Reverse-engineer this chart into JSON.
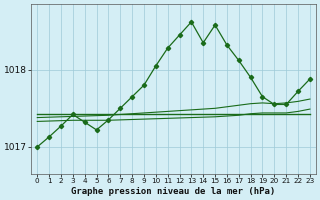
{
  "title": "Graphe pression niveau de la mer (hPa)",
  "bg_color": "#d4eef5",
  "grid_color": "#9ecad8",
  "line_color": "#1a6b1a",
  "marker_color": "#1a6b1a",
  "x_ticks": [
    0,
    1,
    2,
    3,
    4,
    5,
    6,
    7,
    8,
    9,
    10,
    11,
    12,
    13,
    14,
    15,
    16,
    17,
    18,
    19,
    20,
    21,
    22,
    23
  ],
  "xlim": [
    -0.5,
    23.5
  ],
  "ylim": [
    1016.65,
    1018.85
  ],
  "y_ticks": [
    1017,
    1018
  ],
  "main_series": [
    1017.0,
    1017.13,
    1017.27,
    1017.42,
    1017.32,
    1017.22,
    1017.35,
    1017.5,
    1017.65,
    1017.8,
    1018.05,
    1018.28,
    1018.45,
    1018.62,
    1018.35,
    1018.58,
    1018.32,
    1018.12,
    1017.9,
    1017.65,
    1017.55,
    1017.55,
    1017.72,
    1017.88
  ],
  "flat_line1_y": [
    1017.42,
    1017.42,
    1017.42,
    1017.42,
    1017.42,
    1017.42,
    1017.42,
    1017.42,
    1017.42,
    1017.42,
    1017.42,
    1017.42,
    1017.42,
    1017.42,
    1017.42,
    1017.42,
    1017.42,
    1017.42,
    1017.42,
    1017.42,
    1017.42,
    1017.42,
    1017.42,
    1017.42
  ],
  "flat_line2_y": [
    1017.38,
    1017.385,
    1017.39,
    1017.395,
    1017.4,
    1017.405,
    1017.41,
    1017.42,
    1017.43,
    1017.44,
    1017.45,
    1017.46,
    1017.47,
    1017.48,
    1017.49,
    1017.5,
    1017.52,
    1017.54,
    1017.56,
    1017.57,
    1017.56,
    1017.57,
    1017.59,
    1017.62
  ],
  "flat_line3_y": [
    1017.33,
    1017.335,
    1017.34,
    1017.345,
    1017.345,
    1017.345,
    1017.345,
    1017.35,
    1017.355,
    1017.36,
    1017.365,
    1017.37,
    1017.375,
    1017.38,
    1017.385,
    1017.39,
    1017.4,
    1017.41,
    1017.43,
    1017.44,
    1017.44,
    1017.44,
    1017.46,
    1017.49
  ],
  "xlabel_fontsize": 6.5,
  "ytick_fontsize": 6.5,
  "xtick_fontsize": 5.2,
  "linewidth": 0.9,
  "markersize": 2.2
}
